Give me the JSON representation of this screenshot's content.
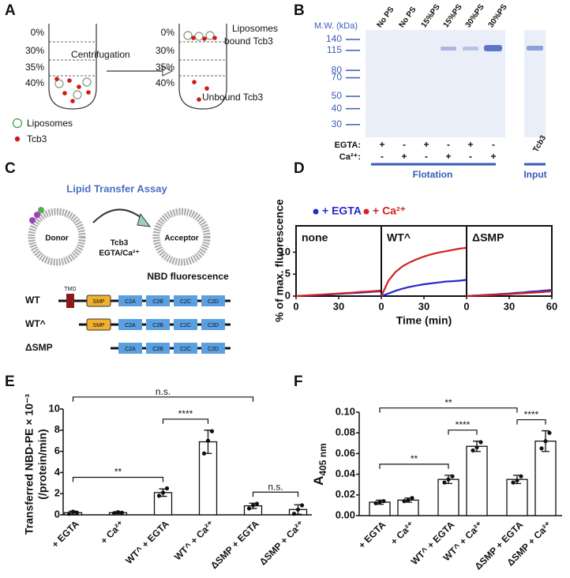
{
  "panel_a": {
    "label": "A",
    "gradient_before": [
      "0%",
      "30%",
      "35%",
      "40%"
    ],
    "arrow": "Centrifugation",
    "gradient_after": [
      "0%",
      "30%",
      "35%",
      "40%"
    ],
    "bound": [
      "Liposomes",
      "bound Tcb3"
    ],
    "unbound": "Unbound Tcb3",
    "legend": [
      "Liposomes",
      "Tcb3"
    ]
  },
  "panel_b": {
    "label": "B",
    "mw_title": "M.W. (kDa)",
    "markers": [
      140,
      115,
      80,
      70,
      50,
      40,
      30
    ],
    "lanes": [
      "No PS",
      "No PS",
      "15%PS",
      "15%PS",
      "30%PS",
      "30%PS"
    ],
    "rows": [
      {
        "name": "EGTA:",
        "signs": [
          "+",
          "-",
          "+",
          "-",
          "+",
          "-"
        ]
      },
      {
        "name": "Ca²⁺:",
        "signs": [
          "-",
          "+",
          "-",
          "+",
          "-",
          "+"
        ]
      }
    ],
    "flotation": "Flotation",
    "input_lane": "Tcb3",
    "input": "Input"
  },
  "panel_c": {
    "label": "C",
    "title": "Lipid Transfer Assay",
    "donor": "Donor",
    "acceptor": "Acceptor",
    "protein": "Tcb3",
    "condition": "EGTA/Ca²⁺",
    "readout": "NBD fluorescence",
    "constructs": [
      {
        "name": "WT",
        "domains": [
          "TMD",
          "SMP",
          "C2A",
          "C2B",
          "C2C",
          "C2D"
        ]
      },
      {
        "name": "WT^",
        "domains": [
          "SMP",
          "C2A",
          "C2B",
          "C2C",
          "C2D"
        ]
      },
      {
        "name": "ΔSMP",
        "domains": [
          "C2A",
          "C2B",
          "C2C",
          "C2D"
        ]
      }
    ]
  },
  "chart_data": [
    {
      "type": "line",
      "label": "D",
      "ylabel": "% of max. fluorescence",
      "xlabel": "Time (min)",
      "x": [
        0,
        5,
        10,
        15,
        20,
        25,
        30,
        35,
        40,
        45,
        50,
        55,
        60
      ],
      "xlim": [
        0,
        60
      ],
      "ylim": [
        0,
        16
      ],
      "yticks": [
        0,
        5,
        10
      ],
      "subplots": [
        {
          "title": "none",
          "xticks": [
            0,
            30
          ]
        },
        {
          "title": "WT^",
          "xticks": [
            0,
            30
          ]
        },
        {
          "title": "ΔSMP",
          "xticks": [
            0,
            30,
            60
          ]
        }
      ],
      "series": [
        {
          "name": "+ EGTA",
          "color": "#2828c8",
          "values": [
            [
              0,
              0.05,
              0.1,
              0.2,
              0.3,
              0.4,
              0.5,
              0.6,
              0.7,
              0.8,
              0.9,
              1.0,
              1.1
            ],
            [
              0,
              0.6,
              1.2,
              1.7,
              2.1,
              2.4,
              2.7,
              2.9,
              3.1,
              3.3,
              3.4,
              3.5,
              3.7
            ],
            [
              0,
              0.1,
              0.2,
              0.3,
              0.4,
              0.5,
              0.6,
              0.75,
              0.85,
              1.0,
              1.1,
              1.25,
              1.4
            ]
          ]
        },
        {
          "name": "+ Ca²⁺",
          "color": "#d42020",
          "values": [
            [
              0,
              0.1,
              0.2,
              0.3,
              0.4,
              0.5,
              0.6,
              0.7,
              0.8,
              0.95,
              1.05,
              1.15,
              1.3
            ],
            [
              0,
              3.5,
              5.5,
              6.8,
              7.7,
              8.4,
              9.0,
              9.5,
              9.9,
              10.2,
              10.5,
              10.8,
              11.0
            ],
            [
              0,
              0.1,
              0.15,
              0.2,
              0.3,
              0.4,
              0.45,
              0.55,
              0.65,
              0.75,
              0.85,
              0.95,
              1.1
            ]
          ]
        }
      ]
    },
    {
      "type": "bar",
      "label": "E",
      "ylabel": [
        "Transferred NBD-PE × 10⁻³",
        "(/protein/min)"
      ],
      "categories": [
        "+ EGTA",
        "+ Ca²⁺",
        "WT^ + EGTA",
        "WT^ + Ca²⁺",
        "ΔSMP + EGTA",
        "ΔSMP + Ca²⁺"
      ],
      "values": [
        0.2,
        0.2,
        2.1,
        6.9,
        0.85,
        0.5
      ],
      "errors": [
        0.15,
        0.1,
        0.35,
        1.1,
        0.25,
        0.45
      ],
      "points": [
        [
          0.1,
          0.3,
          0.2
        ],
        [
          0.15,
          0.25,
          0.2
        ],
        [
          1.8,
          2.1,
          2.5
        ],
        [
          5.8,
          7.0,
          7.9
        ],
        [
          0.6,
          0.9,
          1.05
        ],
        [
          0.1,
          0.5,
          0.9
        ]
      ],
      "ylim": [
        0,
        10
      ],
      "yticks": [
        0,
        2,
        4,
        6,
        8,
        10
      ],
      "annotations": [
        {
          "text": "**",
          "from": 0,
          "to": 2
        },
        {
          "text": "****",
          "from": 2,
          "to": 3
        },
        {
          "text": "n.s.",
          "from": 0,
          "to": 4
        },
        {
          "text": "n.s.",
          "from": 4,
          "to": 5
        }
      ]
    },
    {
      "type": "bar",
      "label": "F",
      "ylabel": {
        "text": "A",
        "subscript": "405 nm"
      },
      "categories": [
        "+ EGTA",
        "+ Ca²⁺",
        "WT^ + EGTA",
        "WT^ + Ca²⁺",
        "ΔSMP + EGTA",
        "ΔSMP + Ca²⁺"
      ],
      "values": [
        0.013,
        0.015,
        0.035,
        0.067,
        0.035,
        0.072
      ],
      "errors": [
        0.002,
        0.002,
        0.004,
        0.005,
        0.004,
        0.01
      ],
      "points": [
        [
          0.012,
          0.013,
          0.014
        ],
        [
          0.014,
          0.015,
          0.017
        ],
        [
          0.032,
          0.035,
          0.038
        ],
        [
          0.063,
          0.066,
          0.071
        ],
        [
          0.032,
          0.034,
          0.038
        ],
        [
          0.065,
          0.072,
          0.08
        ]
      ],
      "ylim": [
        0,
        0.1
      ],
      "yticks": [
        {
          "value": 0,
          "label": "0.00"
        },
        {
          "value": 0.02,
          "label": "0.02"
        },
        {
          "value": 0.04,
          "label": "0.04"
        },
        {
          "value": 0.06,
          "label": "0.06"
        },
        {
          "value": 0.08,
          "label": "0.08"
        },
        {
          "value": 0.1,
          "label": "0.10"
        }
      ],
      "annotations": [
        {
          "text": "**",
          "from": 0,
          "to": 2
        },
        {
          "text": "****",
          "from": 2,
          "to": 3
        },
        {
          "text": "**",
          "from": 0,
          "to": 4
        },
        {
          "text": "****",
          "from": 4,
          "to": 5
        }
      ]
    }
  ]
}
